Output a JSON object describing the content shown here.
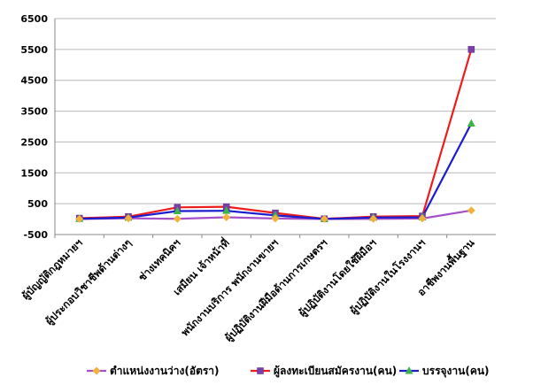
{
  "chart_data": {
    "type": "line",
    "title": "",
    "xlabel": "",
    "ylabel": "",
    "ylim": [
      -500,
      6500
    ],
    "yticks": [
      -500,
      500,
      1500,
      2500,
      3500,
      4500,
      5500,
      6500
    ],
    "grid": "horizontal",
    "legend_position": "bottom",
    "categories": [
      "ผู้บัญญัติกฎหมายฯ",
      "ผู้ประกอบวิชาชีพด้านต่างๆ",
      "ช่างเทคนิคฯ",
      "เสมียน เจ้าหน้าที่",
      "พนักงานบริการ พนักงานขายฯ",
      "ผู้ปฏิบัติงานฝีมือด้านการเกษตรฯ",
      "ผู้ปฏิบัติงานโดยใช้ฝีมือฯ",
      "ผู้ปฏิบัติงานในโรงงานฯ",
      "อาชีพงานพื้นฐาน"
    ],
    "series": [
      {
        "name": "ตำแหน่งงานว่าง(อัตรา)",
        "color": "#a550c8",
        "marker": "diamond",
        "marker_color": "#f0b23c",
        "values": [
          5,
          25,
          10,
          60,
          20,
          5,
          10,
          20,
          280
        ]
      },
      {
        "name": "ผู้ลงทะเบียนสมัครงาน(คน)",
        "color": "#ee1c1c",
        "marker": "square",
        "marker_color": "#7a3fa8",
        "values": [
          30,
          80,
          380,
          400,
          200,
          10,
          80,
          100,
          5500
        ]
      },
      {
        "name": "บรรจุงาน(คน)",
        "color": "#1c1ccf",
        "marker": "triangle",
        "marker_color": "#3cb44b",
        "values": [
          10,
          50,
          260,
          270,
          120,
          5,
          50,
          60,
          3100
        ]
      }
    ]
  }
}
